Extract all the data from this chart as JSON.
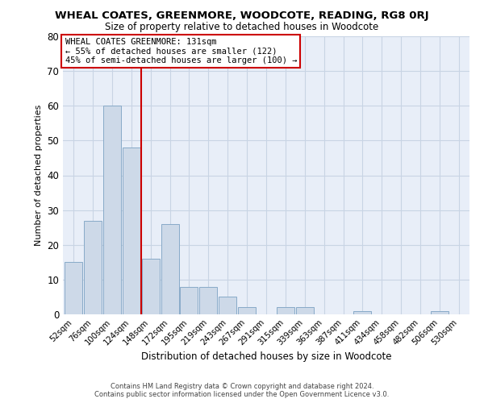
{
  "title": "WHEAL COATES, GREENMORE, WOODCOTE, READING, RG8 0RJ",
  "subtitle": "Size of property relative to detached houses in Woodcote",
  "xlabel": "Distribution of detached houses by size in Woodcote",
  "ylabel": "Number of detached properties",
  "bar_labels": [
    "52sqm",
    "76sqm",
    "100sqm",
    "124sqm",
    "148sqm",
    "172sqm",
    "195sqm",
    "219sqm",
    "243sqm",
    "267sqm",
    "291sqm",
    "315sqm",
    "339sqm",
    "363sqm",
    "387sqm",
    "411sqm",
    "434sqm",
    "458sqm",
    "482sqm",
    "506sqm",
    "530sqm"
  ],
  "bar_values": [
    15,
    27,
    60,
    48,
    16,
    26,
    8,
    8,
    5,
    2,
    0,
    2,
    2,
    0,
    0,
    1,
    0,
    0,
    0,
    1,
    0
  ],
  "bar_color": "#cdd9e8",
  "bar_edgecolor": "#88aac8",
  "vline_x": 3.5,
  "vline_color": "#cc0000",
  "ylim": [
    0,
    80
  ],
  "yticks": [
    0,
    10,
    20,
    30,
    40,
    50,
    60,
    70,
    80
  ],
  "annotation_line1": "WHEAL COATES GREENMORE: 131sqm",
  "annotation_line2": "← 55% of detached houses are smaller (122)",
  "annotation_line3": "45% of semi-detached houses are larger (100) →",
  "footer_line1": "Contains HM Land Registry data © Crown copyright and database right 2024.",
  "footer_line2": "Contains public sector information licensed under the Open Government Licence v3.0.",
  "background_color": "#ffffff",
  "grid_color": "#c8d4e4",
  "plot_bg_color": "#e8eef8"
}
